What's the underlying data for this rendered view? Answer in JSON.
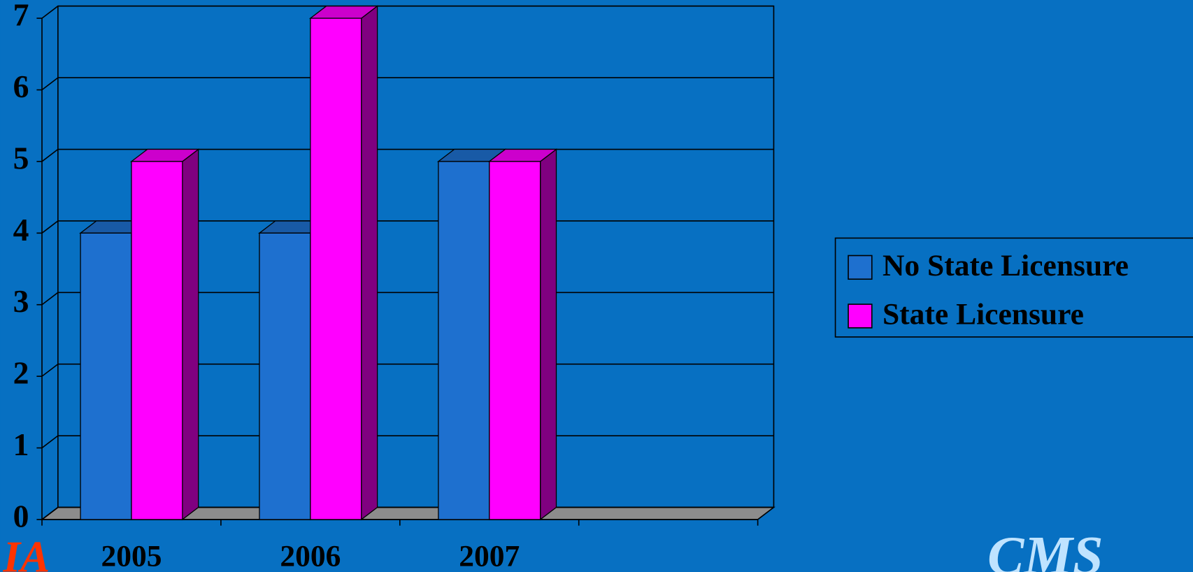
{
  "chart_data": {
    "type": "bar3d",
    "categories": [
      "2005",
      "2006",
      "2007",
      null
    ],
    "series": [
      {
        "name": "No State Licensure",
        "color": "#1e70cf",
        "values": [
          4,
          4,
          5,
          null
        ]
      },
      {
        "name": "State Licensure",
        "color": "#ff00ff",
        "values": [
          5,
          7,
          5,
          null
        ]
      }
    ],
    "ylim": [
      0,
      7
    ],
    "yticks": [
      0,
      1,
      2,
      3,
      4,
      5,
      6,
      7
    ],
    "grid": true,
    "legend": "right"
  },
  "logos": [
    "IA",
    "CMS"
  ]
}
